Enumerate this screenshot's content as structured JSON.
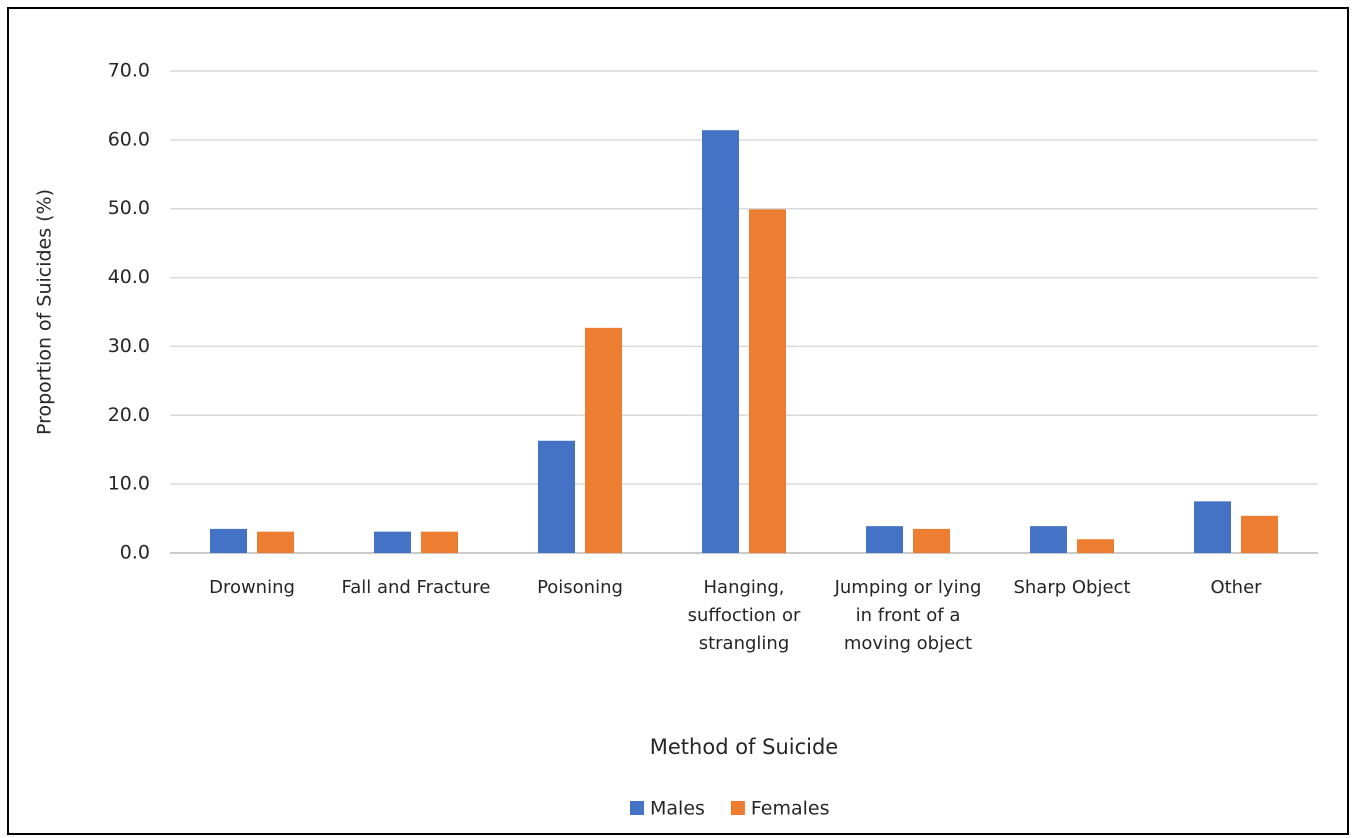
{
  "chart_data": {
    "type": "bar",
    "x_label": "Method of Suicide",
    "y_label": "Proportion of Suicides (%)",
    "categories": [
      "Drowning",
      "Fall and Fracture",
      "Poisoning",
      "Hanging, suffoction or strangling",
      "Jumping or lying in front of a moving object",
      "Sharp Object",
      "Other"
    ],
    "series": [
      {
        "name": "Males",
        "color": "#4472c4",
        "values": [
          3.5,
          3.1,
          16.3,
          61.4,
          3.9,
          3.9,
          7.5
        ]
      },
      {
        "name": "Females",
        "color": "#ed7d31",
        "values": [
          3.1,
          3.1,
          32.7,
          49.9,
          3.5,
          2.0,
          5.4
        ]
      }
    ],
    "ylim": [
      0,
      70
    ],
    "yticks": [
      {
        "value": 0,
        "label": "0.0"
      },
      {
        "value": 10,
        "label": "10.0"
      },
      {
        "value": 20,
        "label": "20.0"
      },
      {
        "value": 30,
        "label": "30.0"
      },
      {
        "value": 40,
        "label": "40.0"
      },
      {
        "value": 50,
        "label": "50.0"
      },
      {
        "value": 60,
        "label": "60.0"
      },
      {
        "value": 70,
        "label": "70.0"
      }
    ],
    "grid": true,
    "legend": "bottom"
  }
}
